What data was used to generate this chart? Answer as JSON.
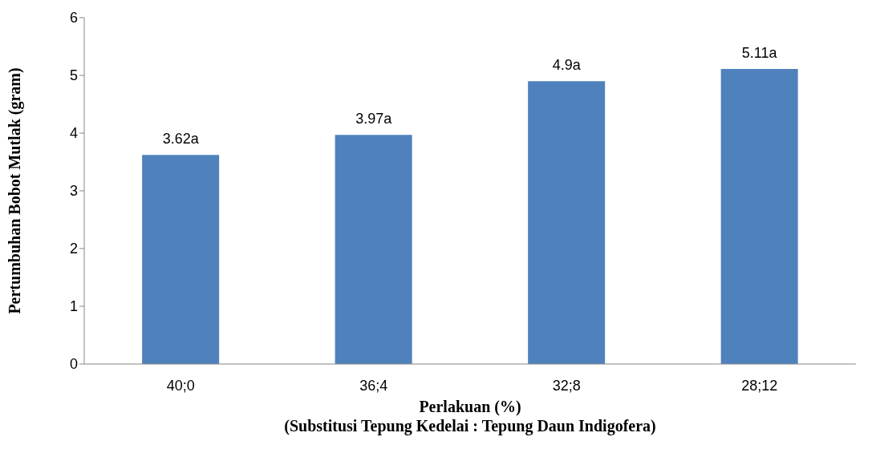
{
  "chart_data": {
    "type": "bar",
    "categories": [
      "40;0",
      "36;4",
      "32;8",
      "28;12"
    ],
    "values": [
      3.62,
      3.97,
      4.9,
      5.11
    ],
    "value_labels": [
      "3.62a",
      "3.97a",
      "4.9a",
      "5.11a"
    ],
    "color": "#4f81bd",
    "ylim": [
      0,
      6
    ],
    "yticks": [
      0,
      1,
      2,
      3,
      4,
      5,
      6
    ],
    "xlabel": "Perlakuan (%)\n(Substitusi Tepung Kedelai : Tepung Daun Indigofera)",
    "ylabel": "Pertumbuhan Bobot Mutlak (gram)"
  }
}
